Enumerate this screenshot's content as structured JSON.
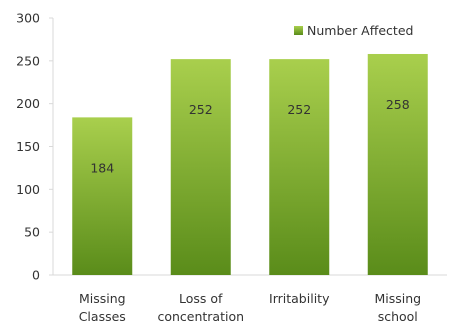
{
  "chart_data": {
    "type": "bar",
    "categories": [
      [
        "Missing",
        "Classes"
      ],
      [
        "Loss of",
        "concentration"
      ],
      [
        "Irritability"
      ],
      [
        "Missing",
        "school"
      ]
    ],
    "values": [
      184,
      252,
      252,
      258
    ],
    "data_labels": [
      "184",
      "252",
      "252",
      "258"
    ],
    "series": [
      {
        "name": "Number Affected",
        "values": [
          184,
          252,
          252,
          258
        ]
      }
    ],
    "ylim": [
      0,
      300
    ],
    "yticks": [
      0,
      50,
      100,
      150,
      200,
      250,
      300
    ],
    "ytick_labels": [
      "0",
      "50",
      "100",
      "150",
      "200",
      "250",
      "300"
    ],
    "grid": false,
    "legend_position": "top-right",
    "colors": {
      "bar_top": "#a9cf4d",
      "bar_bottom": "#5a8c1a",
      "axis": "#d9d9d9"
    }
  }
}
